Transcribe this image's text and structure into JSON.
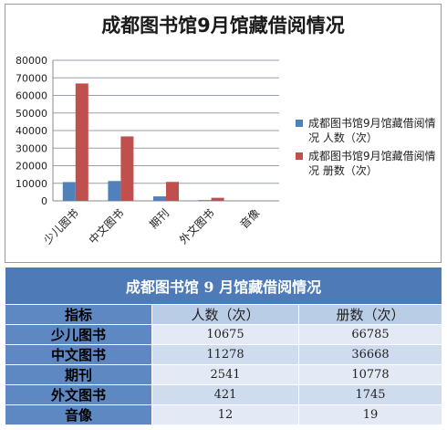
{
  "chart_data": {
    "type": "bar",
    "title": "成都图书馆9月馆藏借阅情况",
    "categories": [
      "少儿图书",
      "中文图书",
      "期刊",
      "外文图书",
      "音像"
    ],
    "series": [
      {
        "name": "成都图书馆9月馆藏借阅情况 人数（次）",
        "values": [
          10675,
          11278,
          2541,
          421,
          12
        ],
        "color": "#4f81bd"
      },
      {
        "name": "成都图书馆9月馆藏借阅情况 册数（次）",
        "values": [
          66785,
          36668,
          10778,
          1745,
          19
        ],
        "color": "#c0504d"
      }
    ],
    "ylim": [
      0,
      80000
    ],
    "yticks": [
      "0",
      "10000",
      "20000",
      "30000",
      "40000",
      "50000",
      "60000",
      "70000",
      "80000"
    ],
    "grid": true,
    "legend": "right"
  },
  "table": {
    "title": "成都图书馆 9 月馆藏借阅情况",
    "header": [
      "指标",
      "人数（次）",
      "册数（次）"
    ],
    "rows": [
      [
        "少儿图书",
        "10675",
        "66785"
      ],
      [
        "中文图书",
        "11278",
        "36668"
      ],
      [
        "期刊",
        "2541",
        "10778"
      ],
      [
        "外文图书",
        "421",
        "1745"
      ],
      [
        "音像",
        "12",
        "19"
      ]
    ]
  }
}
